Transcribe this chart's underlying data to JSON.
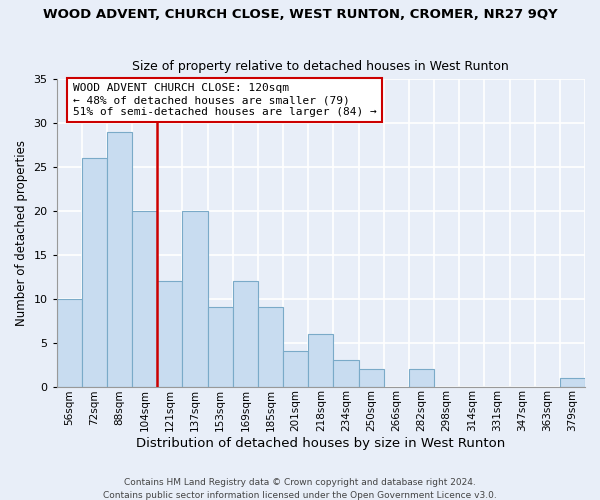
{
  "title": "WOOD ADVENT, CHURCH CLOSE, WEST RUNTON, CROMER, NR27 9QY",
  "subtitle": "Size of property relative to detached houses in West Runton",
  "xlabel": "Distribution of detached houses by size in West Runton",
  "ylabel": "Number of detached properties",
  "bin_labels": [
    "56sqm",
    "72sqm",
    "88sqm",
    "104sqm",
    "121sqm",
    "137sqm",
    "153sqm",
    "169sqm",
    "185sqm",
    "201sqm",
    "218sqm",
    "234sqm",
    "250sqm",
    "266sqm",
    "282sqm",
    "298sqm",
    "314sqm",
    "331sqm",
    "347sqm",
    "363sqm",
    "379sqm"
  ],
  "bar_values": [
    10,
    26,
    29,
    20,
    12,
    20,
    9,
    12,
    9,
    4,
    6,
    3,
    2,
    0,
    2,
    0,
    0,
    0,
    0,
    0,
    1
  ],
  "bar_color": "#c8dcf0",
  "bar_edge_color": "#7aaac8",
  "ref_line_label": "121sqm",
  "ref_line_color": "#cc0000",
  "ylim": [
    0,
    35
  ],
  "yticks": [
    0,
    5,
    10,
    15,
    20,
    25,
    30,
    35
  ],
  "annotation_title": "WOOD ADVENT CHURCH CLOSE: 120sqm",
  "annotation_line1": "← 48% of detached houses are smaller (79)",
  "annotation_line2": "51% of semi-detached houses are larger (84) →",
  "footer1": "Contains HM Land Registry data © Crown copyright and database right 2024.",
  "footer2": "Contains public sector information licensed under the Open Government Licence v3.0.",
  "background_color": "#e8eef8",
  "plot_bg_color": "#e8eef8",
  "grid_color": "#ffffff",
  "box_edge_color": "#cc0000",
  "title_fontsize": 9.5,
  "subtitle_fontsize": 9.0,
  "ylabel_fontsize": 8.5,
  "xlabel_fontsize": 9.5,
  "tick_fontsize": 7.5,
  "ann_fontsize": 8.0,
  "footer_fontsize": 6.5
}
